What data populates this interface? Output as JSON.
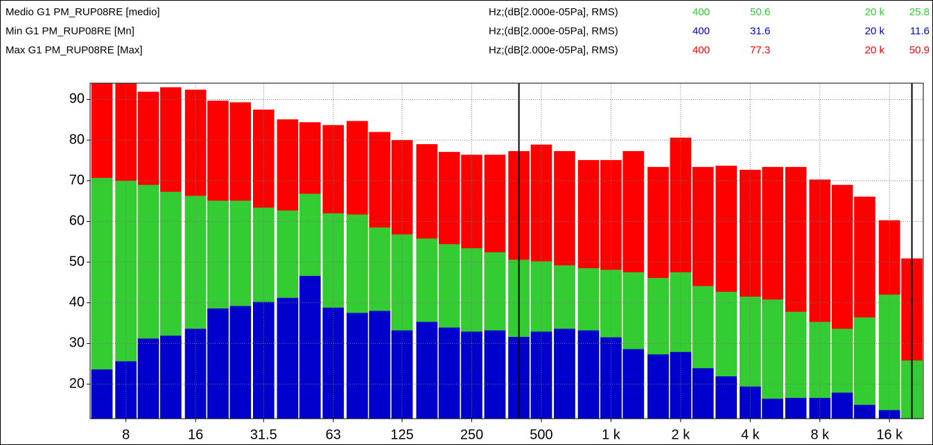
{
  "chart_data": {
    "type": "overlapped_bar",
    "x": [
      6.3,
      8,
      10,
      12.5,
      16,
      20,
      25,
      31.5,
      40,
      50,
      63,
      80,
      100,
      125,
      160,
      200,
      250,
      315,
      400,
      500,
      630,
      800,
      1000,
      1250,
      1600,
      2000,
      2500,
      3150,
      4000,
      5000,
      6300,
      8000,
      10000,
      12500,
      16000,
      20000
    ],
    "xlim": [
      5.6,
      22400
    ],
    "log_x": true,
    "xticks": [
      {
        "value": 8,
        "label": "8"
      },
      {
        "value": 16,
        "label": "16"
      },
      {
        "value": 31.5,
        "label": "31.5"
      },
      {
        "value": 63,
        "label": "63"
      },
      {
        "value": 125,
        "label": "125"
      },
      {
        "value": 250,
        "label": "250"
      },
      {
        "value": 500,
        "label": "500"
      },
      {
        "value": 1000,
        "label": "1 k"
      },
      {
        "value": 2000,
        "label": "2 k"
      },
      {
        "value": 4000,
        "label": "4 k"
      },
      {
        "value": 8000,
        "label": "8 k"
      },
      {
        "value": 16000,
        "label": "16 k"
      }
    ],
    "ylim": [
      11.5,
      94
    ],
    "yticks": [
      20,
      30,
      40,
      50,
      60,
      70,
      80,
      90
    ],
    "grid": true,
    "cursors": [
      {
        "value": 400,
        "label": "400"
      },
      {
        "value": 20000,
        "label": "20 k"
      }
    ],
    "series": [
      {
        "name": "Max G1 PM_RUP08RE [Max]",
        "unit": "Hz;(dB[2.000e-05Pa], RMS)",
        "color": "#ff0000",
        "values": [
          93.9,
          93.9,
          91.9,
          93,
          92.4,
          89.7,
          89.3,
          87.5,
          85.1,
          84.4,
          83.7,
          84.7,
          82,
          80,
          79,
          77.1,
          76.4,
          76.4,
          77.3,
          78.9,
          77.3,
          75.1,
          75.1,
          77.3,
          73.4,
          80.6,
          73.4,
          73.7,
          72.7,
          73.4,
          73.4,
          70.3,
          69,
          66.1,
          60.3,
          50.9
        ]
      },
      {
        "name": "Medio G1 PM_RUP08RE [medio]",
        "unit": "Hz;(dB[2.000e-05Pa], RMS)",
        "color": "#33cc33",
        "values": [
          70.7,
          70,
          69,
          67.3,
          66.3,
          65.1,
          65.1,
          63.4,
          62.7,
          66.8,
          62,
          61.7,
          58.5,
          56.8,
          55.8,
          54.4,
          53.4,
          52.4,
          50.6,
          50.2,
          49.2,
          48.5,
          48.1,
          47.5,
          46.1,
          47.5,
          44.1,
          42.7,
          41.5,
          40.8,
          37.8,
          35.3,
          33.6,
          36.4,
          42,
          25.8
        ]
      },
      {
        "name": "Min G1 PM_RUP08RE [Mn]",
        "unit": "Hz;(dB[2.000e-05Pa], RMS)",
        "color": "#0000cc",
        "values": [
          23.6,
          25.6,
          31.2,
          31.9,
          33.6,
          38.6,
          39.2,
          40.2,
          41.2,
          46.6,
          38.8,
          37.5,
          38,
          33.2,
          35.3,
          33.9,
          32.9,
          33.2,
          31.6,
          32.9,
          33.6,
          33.2,
          31.5,
          28.6,
          27.3,
          27.9,
          23.9,
          21.9,
          19.4,
          16.4,
          16.6,
          16.6,
          17.9,
          14.9,
          13.6,
          11.6
        ]
      }
    ],
    "legend_order": [
      1,
      2,
      0
    ]
  }
}
